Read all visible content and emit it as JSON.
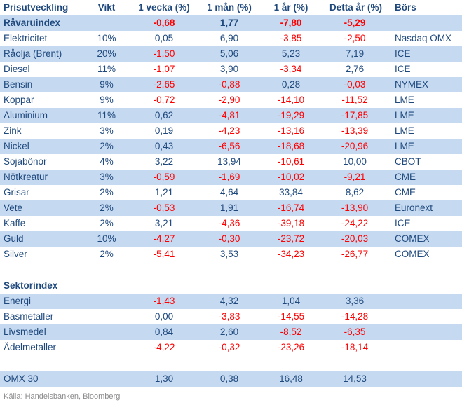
{
  "colors": {
    "navy": "#1F497D",
    "red": "#FF0000",
    "stripe": "#C5D9F1",
    "footer_gray": "#8C8C8C"
  },
  "header": {
    "columns": [
      "Prisutveckling",
      "Vikt",
      "1 vecka (%)",
      "1 mån (%)",
      "1 år (%)",
      "Detta år (%)",
      "Börs"
    ]
  },
  "rows": [
    {
      "label": "Råvaruindex",
      "vikt": "",
      "week": "-0,68",
      "month": "1,77",
      "year": "-7,80",
      "ytd": "-5,29",
      "bors": "",
      "bold": true,
      "shaded": true
    },
    {
      "label": "Elektricitet",
      "vikt": "10%",
      "week": "0,05",
      "month": "6,90",
      "year": "-3,85",
      "ytd": "-2,50",
      "bors": "Nasdaq OMX",
      "shaded": false
    },
    {
      "label": "Råolja (Brent)",
      "vikt": "20%",
      "week": "-1,50",
      "month": "5,06",
      "year": "5,23",
      "ytd": "7,19",
      "bors": "ICE",
      "shaded": true
    },
    {
      "label": "Diesel",
      "vikt": "11%",
      "week": "-1,07",
      "month": "3,90",
      "year": "-3,34",
      "ytd": "2,76",
      "bors": "ICE",
      "shaded": false
    },
    {
      "label": "Bensin",
      "vikt": "9%",
      "week": "-2,65",
      "month": "-0,88",
      "year": "0,28",
      "ytd": "-0,03",
      "bors": "NYMEX",
      "shaded": true
    },
    {
      "label": "Koppar",
      "vikt": "9%",
      "week": "-0,72",
      "month": "-2,90",
      "year": "-14,10",
      "ytd": "-11,52",
      "bors": "LME",
      "shaded": false
    },
    {
      "label": "Aluminium",
      "vikt": "11%",
      "week": "0,62",
      "month": "-4,81",
      "year": "-19,29",
      "ytd": "-17,85",
      "bors": "LME",
      "shaded": true
    },
    {
      "label": "Zink",
      "vikt": "3%",
      "week": "0,19",
      "month": "-4,23",
      "year": "-13,16",
      "ytd": "-13,39",
      "bors": "LME",
      "shaded": false
    },
    {
      "label": "Nickel",
      "vikt": "2%",
      "week": "0,43",
      "month": "-6,56",
      "year": "-18,68",
      "ytd": "-20,96",
      "bors": "LME",
      "shaded": true
    },
    {
      "label": "Sojabönor",
      "vikt": "4%",
      "week": "3,22",
      "month": "13,94",
      "year": "-10,61",
      "ytd": "10,00",
      "bors": "CBOT",
      "shaded": false
    },
    {
      "label": "Nötkreatur",
      "vikt": "3%",
      "week": "-0,59",
      "month": "-1,69",
      "year": "-10,02",
      "ytd": "-9,21",
      "bors": "CME",
      "shaded": true
    },
    {
      "label": "Grisar",
      "vikt": "2%",
      "week": "1,21",
      "month": "4,64",
      "year": "33,84",
      "ytd": "8,62",
      "bors": "CME",
      "shaded": false
    },
    {
      "label": "Vete",
      "vikt": "2%",
      "week": "-0,53",
      "month": "1,91",
      "year": "-16,74",
      "ytd": "-13,90",
      "bors": "Euronext",
      "shaded": true
    },
    {
      "label": "Kaffe",
      "vikt": "2%",
      "week": "3,21",
      "month": "-4,36",
      "year": "-39,18",
      "ytd": "-24,22",
      "bors": "ICE",
      "shaded": false
    },
    {
      "label": "Guld",
      "vikt": "10%",
      "week": "-4,27",
      "month": "-0,30",
      "year": "-23,72",
      "ytd": "-20,03",
      "bors": "COMEX",
      "shaded": true
    },
    {
      "label": "Silver",
      "vikt": "2%",
      "week": "-5,41",
      "month": "3,53",
      "year": "-34,23",
      "ytd": "-26,77",
      "bors": "COMEX",
      "shaded": false
    },
    {
      "spacer": true
    },
    {
      "label": "Sektorindex",
      "vikt": "",
      "week": "",
      "month": "",
      "year": "",
      "ytd": "",
      "bors": "",
      "bold": true,
      "section": true,
      "shaded": false
    },
    {
      "label": "Energi",
      "vikt": "",
      "week": "-1,43",
      "month": "4,32",
      "year": "1,04",
      "ytd": "3,36",
      "bors": "",
      "shaded": true
    },
    {
      "label": "Basmetaller",
      "vikt": "",
      "week": "0,00",
      "month": "-3,83",
      "year": "-14,55",
      "ytd": "-14,28",
      "bors": "",
      "shaded": false
    },
    {
      "label": "Livsmedel",
      "vikt": "",
      "week": "0,84",
      "month": "2,60",
      "year": "-8,52",
      "ytd": "-6,35",
      "bors": "",
      "shaded": true
    },
    {
      "label": "Ädelmetaller",
      "vikt": "",
      "week": "-4,22",
      "month": "-0,32",
      "year": "-23,26",
      "ytd": "-18,14",
      "bors": "",
      "shaded": false
    },
    {
      "spacer": true
    },
    {
      "label": "OMX 30",
      "vikt": "",
      "week": "1,30",
      "month": "0,38",
      "year": "16,48",
      "ytd": "14,53",
      "bors": "",
      "shaded": true
    }
  ],
  "footer": {
    "source": "Källa: Handelsbanken, Bloomberg"
  }
}
